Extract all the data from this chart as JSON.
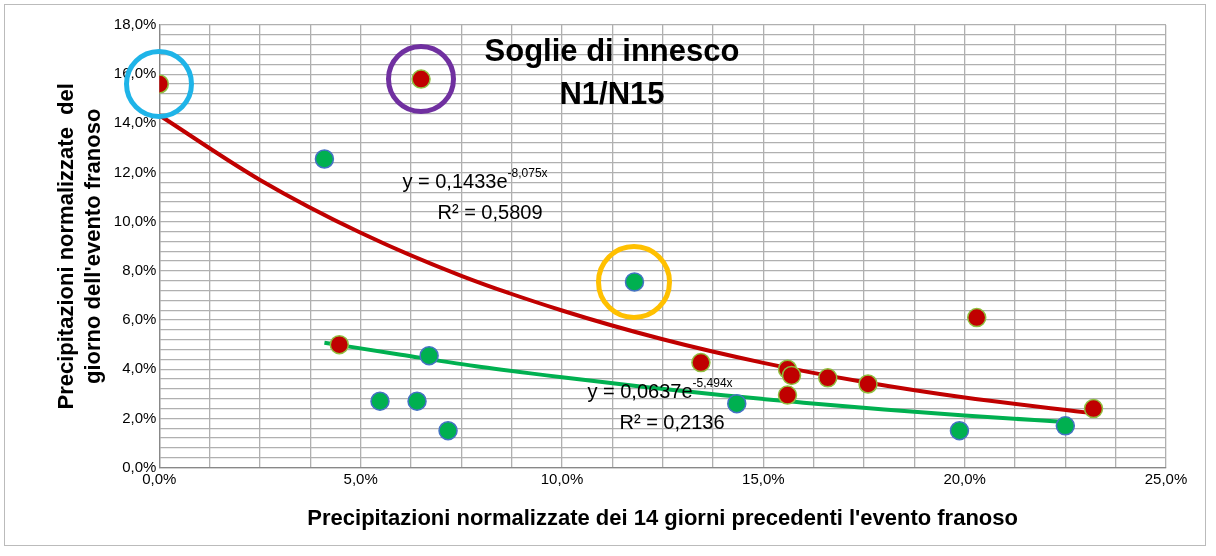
{
  "chart_data": {
    "type": "scatter",
    "title": "Soglie di innesco\nN1/N15",
    "xlabel": "Precipitazioni normalizzate dei 14 giorni precedenti l'evento franoso",
    "ylabel": "Precipitazioni normalizzate  del\ngiorno dell'evento franoso",
    "annotations": [
      "y = 0,1433e$^{-8,075x}$",
      "R² = 0,5809",
      "y = 0,0637e$^{-5,494x}$",
      "R² = 0,2136"
    ],
    "xlim": [
      0,
      25
    ],
    "ylim": [
      0,
      18
    ],
    "xticks": [
      {
        "value": 0,
        "label": "0,0%"
      },
      {
        "value": 1.25,
        "label": null
      },
      {
        "value": 2.5,
        "label": null
      },
      {
        "value": 3.75,
        "label": null
      },
      {
        "value": 5,
        "label": "5,0%"
      },
      {
        "value": 6.25,
        "label": null
      },
      {
        "value": 7.5,
        "label": null
      },
      {
        "value": 8.75,
        "label": null
      },
      {
        "value": 10,
        "label": "10,0%"
      },
      {
        "value": 11.25,
        "label": null
      },
      {
        "value": 12.5,
        "label": null
      },
      {
        "value": 13.75,
        "label": null
      },
      {
        "value": 15,
        "label": "15,0%"
      },
      {
        "value": 16.25,
        "label": null
      },
      {
        "value": 17.5,
        "label": null
      },
      {
        "value": 18.75,
        "label": null
      },
      {
        "value": 20,
        "label": "20,0%"
      },
      {
        "value": 21.25,
        "label": null
      },
      {
        "value": 22.5,
        "label": null
      },
      {
        "value": 23.75,
        "label": null
      },
      {
        "value": 25,
        "label": "25,0%"
      }
    ],
    "yticks": [
      {
        "value": 0,
        "label": "0,0%"
      },
      {
        "value": 0.4,
        "label": null
      },
      {
        "value": 0.8,
        "label": null
      },
      {
        "value": 1.2,
        "label": null
      },
      {
        "value": 1.6,
        "label": null
      },
      {
        "value": 2,
        "label": "2,0%"
      },
      {
        "value": 2.4,
        "label": null
      },
      {
        "value": 2.8,
        "label": null
      },
      {
        "value": 3.2,
        "label": null
      },
      {
        "value": 3.6,
        "label": null
      },
      {
        "value": 4,
        "label": "4,0%"
      },
      {
        "value": 4.4,
        "label": null
      },
      {
        "value": 4.8,
        "label": null
      },
      {
        "value": 5.2,
        "label": null
      },
      {
        "value": 5.6,
        "label": null
      },
      {
        "value": 6,
        "label": "6,0%"
      },
      {
        "value": 6.4,
        "label": null
      },
      {
        "value": 6.8,
        "label": null
      },
      {
        "value": 7.2,
        "label": null
      },
      {
        "value": 7.6,
        "label": null
      },
      {
        "value": 8,
        "label": "8,0%"
      },
      {
        "value": 8.4,
        "label": null
      },
      {
        "value": 8.8,
        "label": null
      },
      {
        "value": 9.2,
        "label": null
      },
      {
        "value": 9.6,
        "label": null
      },
      {
        "value": 10,
        "label": "10,0%"
      },
      {
        "value": 10.4,
        "label": null
      },
      {
        "value": 10.8,
        "label": null
      },
      {
        "value": 11.2,
        "label": null
      },
      {
        "value": 11.6,
        "label": null
      },
      {
        "value": 12,
        "label": "12,0%"
      },
      {
        "value": 12.4,
        "label": null
      },
      {
        "value": 12.8,
        "label": null
      },
      {
        "value": 13.2,
        "label": null
      },
      {
        "value": 13.6,
        "label": null
      },
      {
        "value": 14,
        "label": "14,0%"
      },
      {
        "value": 14.4,
        "label": null
      },
      {
        "value": 14.8,
        "label": null
      },
      {
        "value": 15.2,
        "label": null
      },
      {
        "value": 15.6,
        "label": null
      },
      {
        "value": 16,
        "label": "16,0%"
      },
      {
        "value": 16.4,
        "label": null
      },
      {
        "value": 16.8,
        "label": null
      },
      {
        "value": 17.2,
        "label": null
      },
      {
        "value": 17.6,
        "label": null
      },
      {
        "value": 18,
        "label": "18,0%"
      }
    ],
    "grid": true,
    "marker": "circle",
    "series": [
      {
        "color": "#c00000",
        "x": [
          0,
          6.5,
          4.47,
          13.45,
          15.6,
          15.7,
          15.6,
          16.6,
          17.6,
          20.3,
          23.2
        ],
        "values": [
          15.6,
          15.8,
          5.0,
          4.27,
          4.0,
          3.75,
          2.95,
          3.65,
          3.4,
          6.1,
          2.4
        ]
      },
      {
        "color": "#00b050",
        "x": [
          4.1,
          6.7,
          5.48,
          6.4,
          7.17,
          11.8,
          14.34,
          19.87,
          22.5
        ],
        "values": [
          12.55,
          4.55,
          2.7,
          2.7,
          1.5,
          7.55,
          2.6,
          1.5,
          1.7
        ]
      },
      {
        "type": "line",
        "marker": "none",
        "color": "#c00000",
        "x": [
          0,
          2.5,
          5,
          7.5,
          10,
          12.5,
          15,
          17.5,
          20,
          23.2
        ],
        "values": [
          14.33,
          11.7,
          9.55,
          7.8,
          6.39,
          5.22,
          4.26,
          3.48,
          2.85,
          2.21
        ]
      },
      {
        "type": "line",
        "marker": "none",
        "color": "#00b050",
        "x": [
          4.1,
          6,
          8,
          10,
          12,
          14,
          16,
          18,
          20,
          22.5
        ],
        "values": [
          5.08,
          4.59,
          4.09,
          3.67,
          3.29,
          2.94,
          2.64,
          2.36,
          2.12,
          1.85
        ]
      }
    ]
  }
}
